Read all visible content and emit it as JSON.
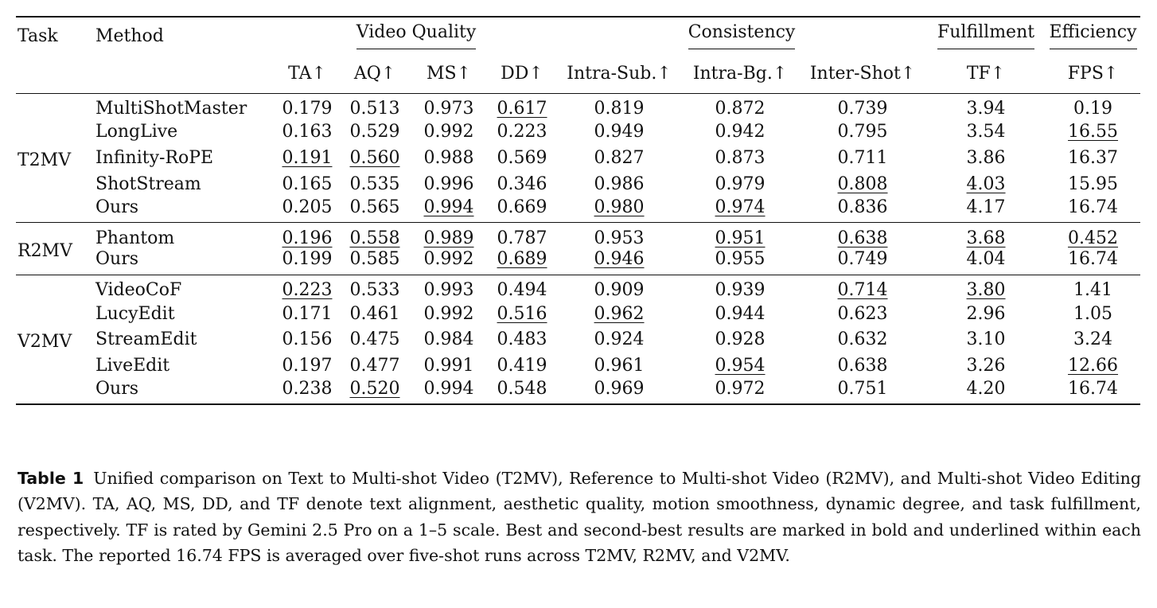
{
  "table": {
    "headers": {
      "task": "Task",
      "method": "Method",
      "groups": {
        "video_quality": "Video Quality",
        "consistency": "Consistency",
        "fulfillment": "Fulfillment",
        "efficiency": "Efficiency"
      },
      "metrics": [
        "TA↑",
        "AQ↑",
        "MS↑",
        "DD↑",
        "Intra-Sub.↑",
        "Intra-Bg.↑",
        "Inter-Shot↑",
        "TF↑",
        "FPS↑"
      ]
    },
    "sections": [
      {
        "task": "T2MV",
        "rows": [
          {
            "method": "MultiShotMaster",
            "values": [
              "0.179",
              "0.513",
              "0.973",
              "0.617",
              "0.819",
              "0.872",
              "0.739",
              "3.94",
              "0.19"
            ]
          },
          {
            "method": "LongLive",
            "values": [
              "0.163",
              "0.529",
              "0.992",
              "0.223",
              "0.949",
              "0.942",
              "0.795",
              "3.54",
              "16.55"
            ]
          },
          {
            "method": "Infinity-RoPE",
            "values": [
              "0.191",
              "0.560",
              "0.988",
              "0.569",
              "0.827",
              "0.873",
              "0.711",
              "3.86",
              "16.37"
            ]
          },
          {
            "method": "ShotStream",
            "values": [
              "0.165",
              "0.535",
              "0.996",
              "0.346",
              "0.986",
              "0.979",
              "0.808",
              "4.03",
              "15.95"
            ]
          },
          {
            "method": "Ours",
            "values": [
              "0.205",
              "0.565",
              "0.994",
              "0.669",
              "0.980",
              "0.974",
              "0.836",
              "4.17",
              "16.74"
            ]
          }
        ]
      },
      {
        "task": "R2MV",
        "rows": [
          {
            "method": "Phantom",
            "values": [
              "0.196",
              "0.558",
              "0.989",
              "0.787",
              "0.953",
              "0.951",
              "0.638",
              "3.68",
              "0.452"
            ]
          },
          {
            "method": "Ours",
            "values": [
              "0.199",
              "0.585",
              "0.992",
              "0.689",
              "0.946",
              "0.955",
              "0.749",
              "4.04",
              "16.74"
            ]
          }
        ]
      },
      {
        "task": "V2MV",
        "rows": [
          {
            "method": "VideoCoF",
            "values": [
              "0.223",
              "0.533",
              "0.993",
              "0.494",
              "0.909",
              "0.939",
              "0.714",
              "3.80",
              "1.41"
            ]
          },
          {
            "method": "LucyEdit",
            "values": [
              "0.171",
              "0.461",
              "0.992",
              "0.516",
              "0.962",
              "0.944",
              "0.623",
              "2.96",
              "1.05"
            ]
          },
          {
            "method": "StreamEdit",
            "values": [
              "0.156",
              "0.475",
              "0.984",
              "0.483",
              "0.924",
              "0.928",
              "0.632",
              "3.10",
              "3.24"
            ]
          },
          {
            "method": "LiveEdit",
            "values": [
              "0.197",
              "0.477",
              "0.991",
              "0.419",
              "0.961",
              "0.954",
              "0.638",
              "3.26",
              "12.66"
            ]
          },
          {
            "method": "Ours",
            "values": [
              "0.238",
              "0.520",
              "0.994",
              "0.548",
              "0.969",
              "0.972",
              "0.751",
              "4.20",
              "16.74"
            ]
          }
        ]
      }
    ]
  },
  "caption": {
    "label": "Table 1",
    "text": "Unified comparison on Text to Multi-shot Video (T2MV), Reference to Multi-shot Video (R2MV), and Multi-shot Video Editing (V2MV). TA, AQ, MS, DD, and TF denote text alignment, aesthetic quality, motion smoothness, dynamic degree, and task fulfillment, respectively. TF is rated by Gemini 2.5 Pro on a 1–5 scale. Best and second-best results are marked in bold and underlined within each task. The reported 16.74 FPS is averaged over five-shot runs across T2MV, R2MV, and V2MV."
  }
}
